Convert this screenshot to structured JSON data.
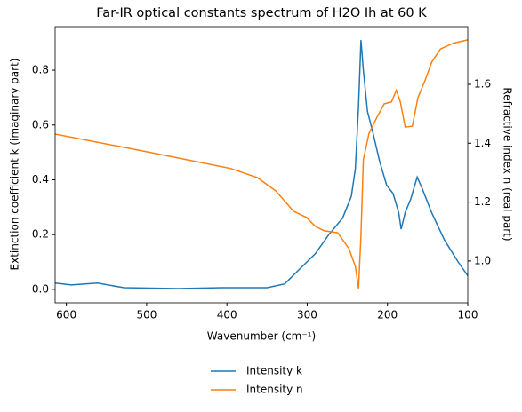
{
  "chart_data": {
    "type": "line",
    "title": "Far-IR optical constants spectrum of H2O Ih at 60 K",
    "x_label": "Wavenumber (cm⁻¹)",
    "y_label": "Extinction coefficient k (imaginary part)",
    "y2_label": "Refractive index n (real part)",
    "xlim": [
      614,
      100
    ],
    "xticks": [
      600,
      500,
      400,
      300,
      200,
      100
    ],
    "ylim": [
      -0.049,
      0.959
    ],
    "yticks": [
      {
        "value": 0,
        "label": "0.0"
      },
      {
        "value": 0.2,
        "label": "0.2"
      },
      {
        "value": 0.4,
        "label": "0.4"
      },
      {
        "value": 0.6,
        "label": "0.6"
      },
      {
        "value": 0.8,
        "label": "0.8"
      }
    ],
    "y2lim": [
      0.858,
      1.796
    ],
    "y2ticks": [
      {
        "value": 1.0,
        "label": "1.0"
      },
      {
        "value": 1.2,
        "label": "1.2"
      },
      {
        "value": 1.4,
        "label": "1.4"
      },
      {
        "value": 1.6,
        "label": "1.6"
      }
    ],
    "legend": "bottom",
    "series": [
      {
        "name": "Intensity k",
        "color": "#1f77b4",
        "x": [
          614,
          594,
          561,
          528,
          461,
          406,
          350,
          328,
          306,
          290,
          273,
          256,
          245,
          240,
          236,
          233,
          230,
          225,
          218,
          210,
          201,
          193,
          186,
          183,
          178,
          171,
          163,
          157,
          145,
          129,
          112,
          100
        ],
        "values": [
          0.023,
          0.016,
          0.023,
          0.006,
          0.003,
          0.006,
          0.006,
          0.02,
          0.084,
          0.13,
          0.2,
          0.26,
          0.34,
          0.44,
          0.67,
          0.91,
          0.8,
          0.65,
          0.57,
          0.47,
          0.38,
          0.35,
          0.28,
          0.22,
          0.28,
          0.33,
          0.41,
          0.37,
          0.28,
          0.18,
          0.1,
          0.05
        ]
      },
      {
        "name": "Intensity n",
        "color": "#ff7f0e",
        "axis": "y2",
        "x": [
          614,
          517,
          461,
          395,
          362,
          339,
          317,
          301,
          290,
          279,
          262,
          248,
          240,
          236,
          233,
          230,
          223,
          212,
          204,
          195,
          189,
          184,
          178,
          169,
          162,
          153,
          145,
          134,
          118,
          100
        ],
        "values": [
          1.431,
          1.38,
          1.35,
          1.314,
          1.283,
          1.238,
          1.169,
          1.148,
          1.118,
          1.103,
          1.096,
          1.042,
          0.982,
          0.907,
          1.087,
          1.344,
          1.434,
          1.494,
          1.534,
          1.54,
          1.58,
          1.54,
          1.455,
          1.458,
          1.555,
          1.615,
          1.675,
          1.72,
          1.74,
          1.751
        ]
      }
    ]
  }
}
